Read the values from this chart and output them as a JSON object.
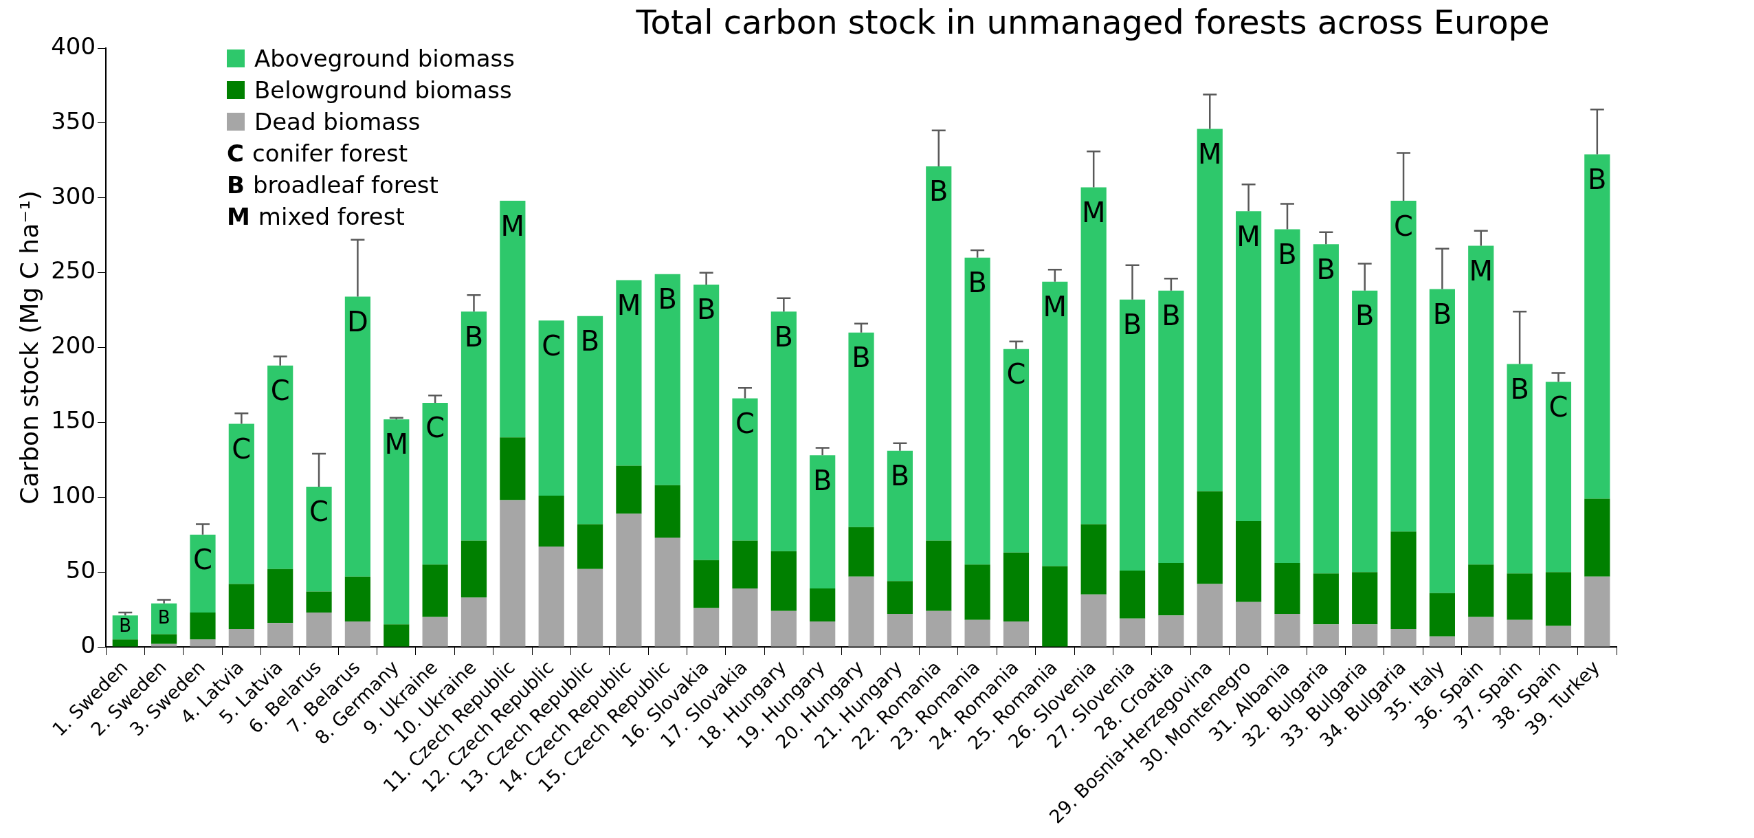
{
  "chart_data": {
    "type": "bar",
    "stacked": true,
    "title": "Total carbon stock in unmanaged forests across Europe",
    "ylabel": "Carbon stock (Mg C ha⁻¹)",
    "categories": [
      "1. Sweden",
      "2. Sweden",
      "3. Sweden",
      "4. Latvia",
      "5. Latvia",
      "6. Belarus",
      "7. Belarus",
      "8. Germany",
      "9. Ukraine",
      "10. Ukraine",
      "11. Czech Republic",
      "12. Czech Republic",
      "13. Czech Republic",
      "14. Czech Republic",
      "15. Czech Republic",
      "16. Slovakia",
      "17. Slovakia",
      "18. Hungary",
      "19. Hungary",
      "20. Hungary",
      "21. Hungary",
      "22. Romania",
      "23. Romania",
      "24. Romania",
      "25. Romania",
      "26. Slovenia",
      "27. Slovenia",
      "28. Croatia",
      "29. Bosnia-Herzegovina",
      "30. Montenegro",
      "31. Albania",
      "32. Bulgaria",
      "33. Bulgaria",
      "34. Bulgaria",
      "35. Italy",
      "36. Spain",
      "37. Spain",
      "38. Spain",
      "39. Turkey"
    ],
    "series": [
      {
        "name": "Dead biomass",
        "color": "#a6a6a6",
        "values": [
          0,
          2,
          5,
          12,
          16,
          23,
          17,
          0,
          20,
          33,
          98,
          67,
          52,
          89,
          73,
          26,
          39,
          24,
          17,
          47,
          22,
          24,
          18,
          17,
          0,
          35,
          19,
          21,
          42,
          30,
          22,
          15,
          15,
          12,
          7,
          20,
          18,
          14,
          47
        ]
      },
      {
        "name": "Belowground biomass",
        "color": "#008000",
        "values": [
          5,
          6.5,
          18,
          30,
          36,
          14,
          30,
          15,
          35,
          38,
          42,
          34,
          30,
          32,
          35,
          32,
          32,
          40,
          22,
          33,
          22,
          47,
          37,
          46,
          54,
          47,
          32,
          35,
          62,
          54,
          34,
          34,
          35,
          65,
          29,
          35,
          31,
          36,
          52
        ]
      },
      {
        "name": "Aboveground biomass",
        "color": "#2ec86b",
        "values": [
          16,
          20.5,
          52,
          107,
          136,
          70,
          187,
          137,
          108,
          153,
          158,
          117,
          139,
          124,
          141,
          184,
          95,
          160,
          89,
          130,
          87,
          250,
          205,
          136,
          190,
          225,
          181,
          182,
          242,
          207,
          223,
          220,
          188,
          221,
          203,
          213,
          140,
          127,
          230
        ],
        "value_labels": [
          "B",
          "B",
          "C",
          "C",
          "C",
          "C",
          "D",
          "M",
          "C",
          "B",
          "M",
          "C",
          "B",
          "M",
          "B",
          "B",
          "C",
          "B",
          "B",
          "B",
          "B",
          "B",
          "B",
          "C",
          "M",
          "M",
          "B",
          "B",
          "M",
          "M",
          "B",
          "B",
          "B",
          "C",
          "B",
          "M",
          "B",
          "C",
          "B"
        ],
        "errors": [
          2,
          2.5,
          7,
          7,
          6,
          22,
          38,
          1,
          5,
          11,
          null,
          null,
          null,
          null,
          null,
          8,
          7,
          9,
          5,
          6,
          5,
          24,
          5,
          5,
          8,
          24,
          23,
          8,
          23,
          18,
          17,
          8,
          18,
          32,
          27,
          10,
          35,
          6,
          30
        ]
      }
    ],
    "ylim": [
      0,
      400
    ],
    "yticks": [
      0,
      50,
      100,
      150,
      200,
      250,
      300,
      350,
      400
    ],
    "legend": "top left",
    "annotations": [
      "C conifer forest",
      "B broadleaf forest",
      "M mixed forest"
    ]
  }
}
